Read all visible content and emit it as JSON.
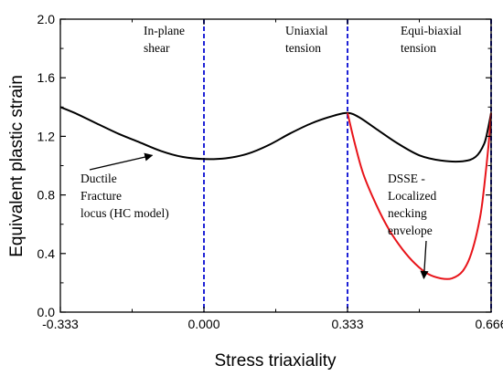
{
  "chart_data": {
    "type": "line",
    "xlabel": "Stress triaxiality",
    "ylabel": "Equivalent plastic strain",
    "xlim": [
      -0.333,
      0.666
    ],
    "ylim": [
      0,
      2.0
    ],
    "x_ticks": [
      -0.333,
      0.0,
      0.333,
      0.666
    ],
    "x_tick_labels": [
      "-0.333",
      "0.000",
      "0.333",
      "0.666"
    ],
    "y_ticks": [
      0.0,
      0.4,
      0.8,
      1.2,
      1.6,
      2.0
    ],
    "y_tick_labels": [
      "0.0",
      "0.4",
      "0.8",
      "1.2",
      "1.6",
      "2.0"
    ],
    "grid": false,
    "series": [
      {
        "color": "#000000",
        "x": [
          -0.333,
          -0.3,
          -0.25,
          -0.2,
          -0.15,
          -0.1,
          -0.05,
          0.0,
          0.05,
          0.1,
          0.15,
          0.2,
          0.25,
          0.3,
          0.333,
          0.36,
          0.4,
          0.45,
          0.5,
          0.55,
          0.6,
          0.63,
          0.65,
          0.66,
          0.666
        ],
        "y": [
          1.4,
          1.36,
          1.29,
          1.22,
          1.16,
          1.1,
          1.06,
          1.045,
          1.05,
          1.08,
          1.14,
          1.22,
          1.29,
          1.34,
          1.36,
          1.33,
          1.25,
          1.15,
          1.07,
          1.035,
          1.03,
          1.06,
          1.15,
          1.27,
          1.36
        ]
      },
      {
        "color": "#e8141a",
        "x": [
          0.333,
          0.35,
          0.37,
          0.4,
          0.43,
          0.46,
          0.49,
          0.52,
          0.55,
          0.575,
          0.6,
          0.62,
          0.64,
          0.65,
          0.66,
          0.666
        ],
        "y": [
          1.36,
          1.15,
          0.94,
          0.73,
          0.56,
          0.43,
          0.33,
          0.26,
          0.23,
          0.23,
          0.28,
          0.4,
          0.64,
          0.86,
          1.14,
          1.36
        ]
      }
    ],
    "vlines": [
      {
        "x": 0.0,
        "color": "#1f22d6",
        "style": "dashed"
      },
      {
        "x": 0.333,
        "color": "#1f22d6",
        "style": "dashed"
      },
      {
        "x": 0.666,
        "color": "#1f22d6",
        "style": "dashed"
      }
    ],
    "annotations": [
      {
        "lines": [
          "In-plane",
          "shear"
        ]
      },
      {
        "lines": [
          "Uniaxial",
          "tension"
        ]
      },
      {
        "lines": [
          "Equi-biaxial",
          "tension"
        ]
      },
      {
        "lines": [
          "Ductile",
          "Fracture",
          "locus (HC model)"
        ],
        "arrow_to": [
          -0.12,
          1.07
        ]
      },
      {
        "lines": [
          "DSSE -",
          "Localized",
          "necking",
          "envelope"
        ],
        "arrow_to": [
          0.51,
          0.23
        ]
      }
    ]
  }
}
